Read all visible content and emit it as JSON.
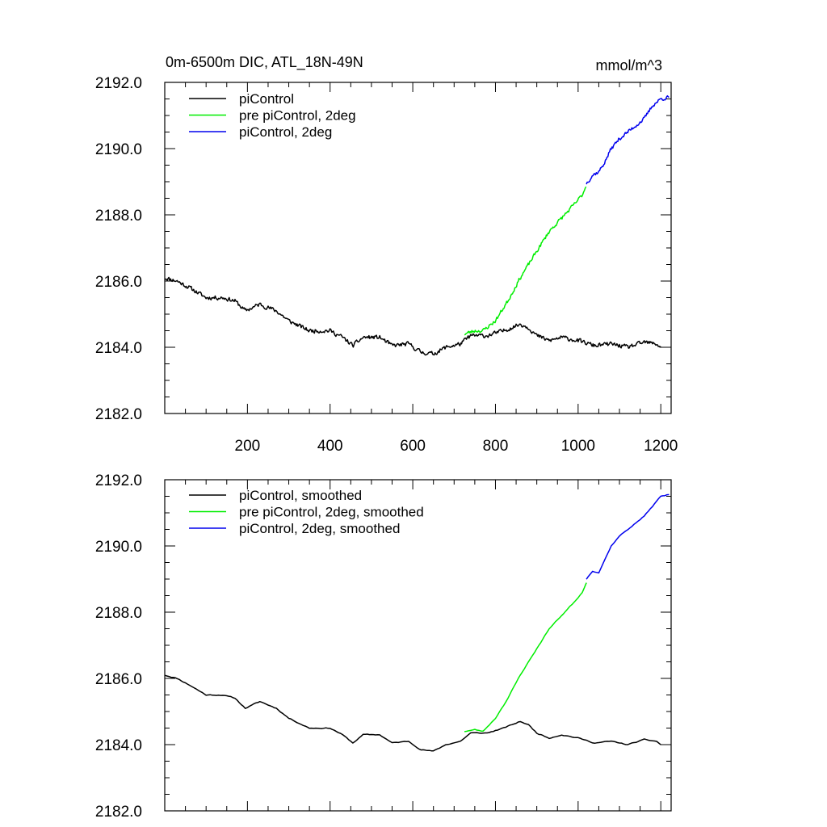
{
  "chart_data": [
    {
      "type": "line",
      "title": "0m-6500m DIC, ATL_18N-49N",
      "units": "mmol/m^3",
      "xlabel": "",
      "ylabel": "",
      "xlim": [
        0,
        1225
      ],
      "ylim": [
        2182.0,
        2192.0
      ],
      "xticks": [
        200,
        400,
        600,
        800,
        1000,
        1200
      ],
      "xtick_labels": [
        "200",
        "400",
        "600",
        "800",
        "1000",
        "1200"
      ],
      "yticks": [
        2182,
        2184,
        2186,
        2188,
        2190,
        2192
      ],
      "ytick_labels": [
        "2182.0",
        "2184.0",
        "2186.0",
        "2188.0",
        "2190.0",
        "2192.0"
      ],
      "legend_position": "top-left",
      "series": [
        {
          "name": "piControl",
          "color": "#000000",
          "noise": 0.09,
          "seed": 11,
          "x": [
            0,
            30,
            60,
            100,
            140,
            170,
            195,
            230,
            270,
            300,
            350,
            400,
            430,
            455,
            480,
            520,
            550,
            590,
            620,
            650,
            680,
            715,
            740,
            780,
            820,
            860,
            880,
            900,
            930,
            960,
            1000,
            1040,
            1080,
            1120,
            1160,
            1190,
            1200
          ],
          "y": [
            2186.1,
            2186.0,
            2185.8,
            2185.5,
            2185.5,
            2185.4,
            2185.1,
            2185.3,
            2185.1,
            2184.8,
            2184.5,
            2184.5,
            2184.3,
            2184.05,
            2184.3,
            2184.3,
            2184.05,
            2184.1,
            2183.85,
            2183.8,
            2184.0,
            2184.1,
            2184.35,
            2184.35,
            2184.5,
            2184.7,
            2184.6,
            2184.35,
            2184.2,
            2184.3,
            2184.2,
            2184.05,
            2184.1,
            2184.0,
            2184.15,
            2184.1,
            2184.0
          ]
        },
        {
          "name": "pre piControl, 2deg",
          "color": "#00ee00",
          "noise": 0.08,
          "seed": 23,
          "x": [
            725,
            750,
            770,
            800,
            830,
            860,
            900,
            930,
            960,
            990,
            1010,
            1020
          ],
          "y": [
            2184.4,
            2184.5,
            2184.5,
            2184.8,
            2185.4,
            2186.1,
            2186.9,
            2187.5,
            2187.9,
            2188.3,
            2188.6,
            2188.9
          ],
          "smoothed_y": [
            2184.4,
            2184.45,
            2184.4,
            2184.8,
            2185.4,
            2186.1,
            2186.9,
            2187.5,
            2187.9,
            2188.3,
            2188.6,
            2188.9
          ]
        },
        {
          "name": "piControl, 2deg",
          "color": "#0000ee",
          "noise": 0.08,
          "seed": 37,
          "x": [
            1020,
            1035,
            1050,
            1065,
            1080,
            1100,
            1120,
            1140,
            1160,
            1180,
            1200,
            1220
          ],
          "y": [
            2188.95,
            2189.2,
            2189.3,
            2189.6,
            2190.0,
            2190.3,
            2190.5,
            2190.7,
            2190.9,
            2191.3,
            2191.5,
            2191.55
          ],
          "smoothed_y": [
            2189.0,
            2189.25,
            2189.2,
            2189.6,
            2190.0,
            2190.3,
            2190.5,
            2190.7,
            2190.9,
            2191.2,
            2191.5,
            2191.55
          ]
        }
      ]
    },
    {
      "type": "line",
      "title": "",
      "xlabel": "",
      "ylabel": "",
      "xlim": [
        0,
        1225
      ],
      "ylim": [
        2182.0,
        2192.0
      ],
      "xticks": [
        200,
        400,
        600,
        800,
        1000,
        1200
      ],
      "xtick_labels": [],
      "yticks": [
        2182,
        2184,
        2186,
        2188,
        2190,
        2192
      ],
      "ytick_labels": [
        "2182.0",
        "2184.0",
        "2186.0",
        "2188.0",
        "2190.0",
        "2192.0"
      ],
      "legend_position": "top-left",
      "smoothed": true,
      "series": [
        {
          "name": "piControl, smoothed",
          "color": "#000000",
          "noise": 0.03,
          "seed": 11
        },
        {
          "name": "pre piControl, 2deg, smoothed",
          "color": "#00ee00",
          "noise": 0.03,
          "seed": 23
        },
        {
          "name": "piControl, 2deg, smoothed",
          "color": "#0000ee",
          "noise": 0.03,
          "seed": 37
        }
      ]
    }
  ]
}
